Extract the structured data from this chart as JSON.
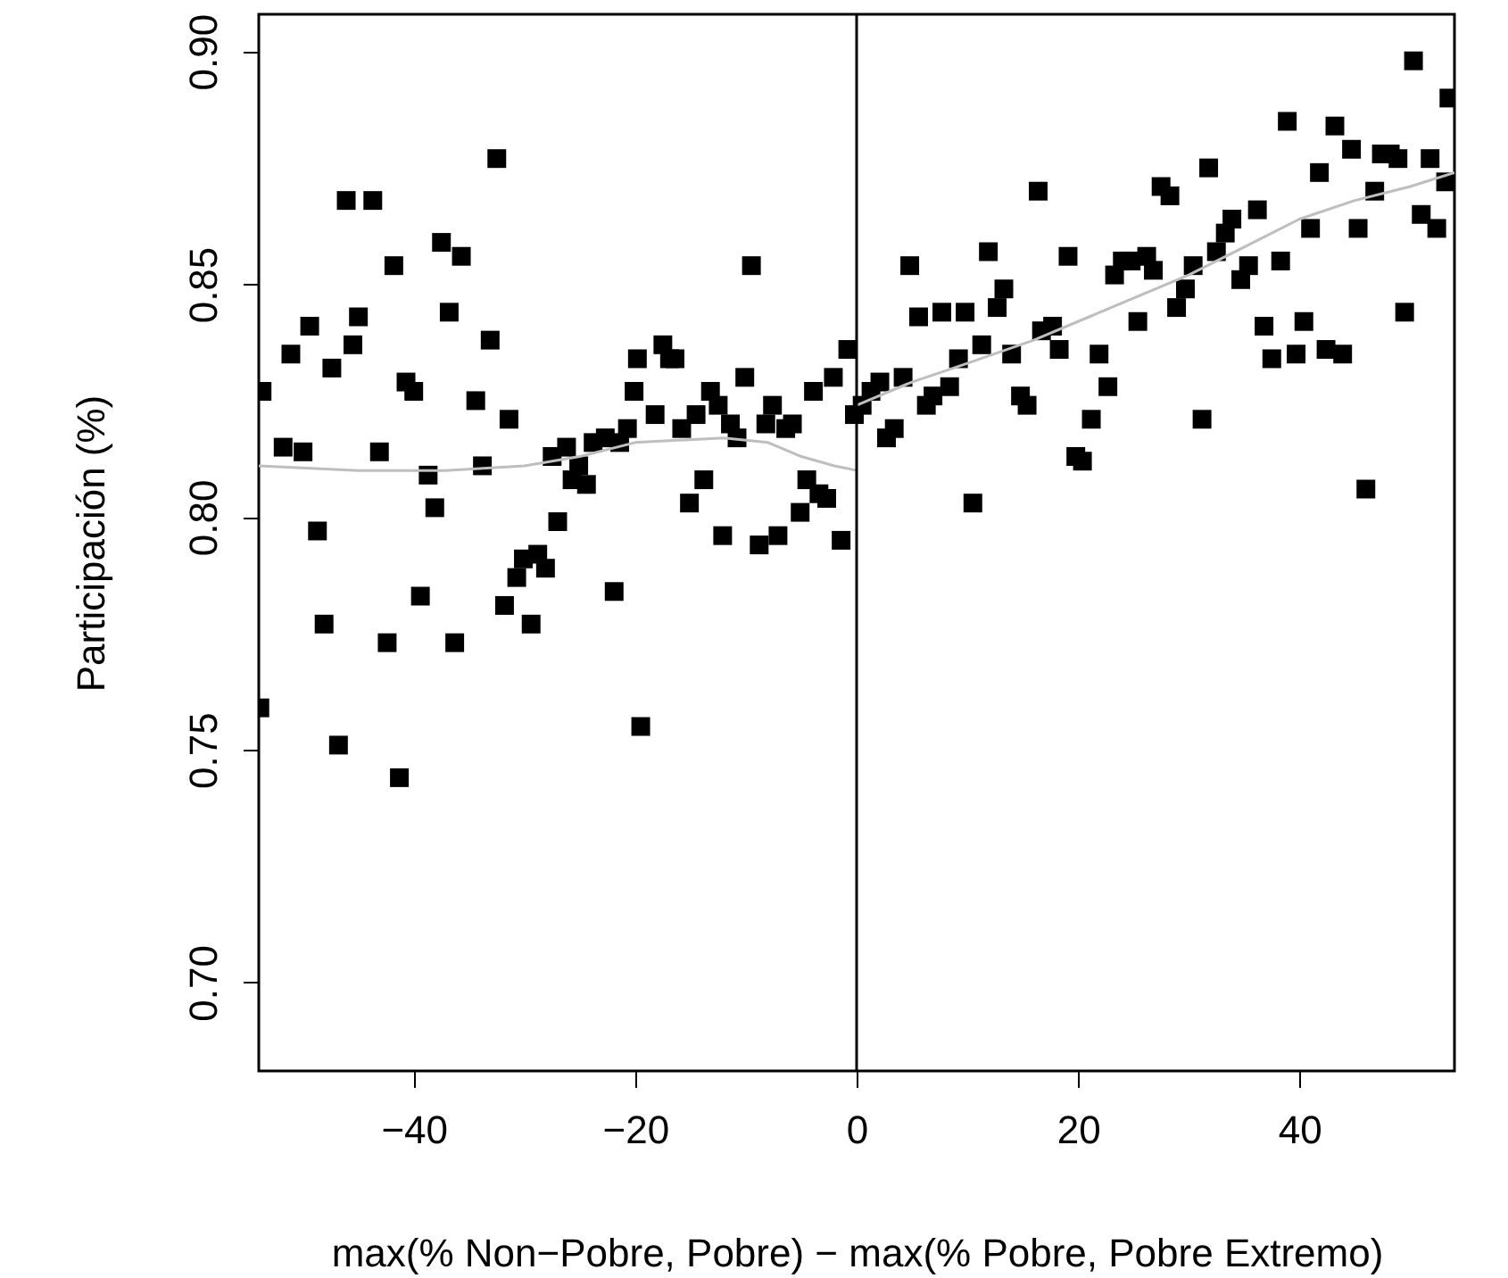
{
  "chart_data": {
    "type": "scatter",
    "xlabel": "max(% Non−Pobre, Pobre) − max(% Pobre, Pobre Extremo)",
    "ylabel": "Participación (%)",
    "xlim": [
      -54,
      54
    ],
    "ylim": [
      0.681,
      0.908
    ],
    "xticks": [
      {
        "value": -40,
        "label": "−40"
      },
      {
        "value": -20,
        "label": "−20"
      },
      0,
      20,
      40
    ],
    "yticks": [
      {
        "value": 0.7,
        "label": "0.70"
      },
      {
        "value": 0.75,
        "label": "0.75"
      },
      {
        "value": 0.8,
        "label": "0.80"
      },
      {
        "value": 0.85,
        "label": "0.85"
      },
      {
        "value": 0.9,
        "label": "0.90"
      }
    ],
    "marker": "square",
    "ref_lines": [
      {
        "axis": "x",
        "value": 0,
        "color": "#000000"
      }
    ],
    "series": [
      {
        "color": "#000000",
        "x": [
          -32.5,
          -46.1,
          -43.7,
          -37.5,
          -35.7,
          -41.8,
          -49.4,
          -45.0,
          -36.8,
          -45.5,
          -33.1,
          -51.1,
          -47.4,
          -53.7,
          -40.7,
          -40.0,
          -34.4,
          -31.4,
          -51.8,
          -50.0,
          -43.1,
          -38.7,
          -33.8,
          -38.1,
          -48.7,
          -27.0,
          -39.4,
          -31.8,
          -48.1,
          -42.4,
          -36.3,
          -29.4,
          -30.7,
          -30.1,
          -28.8,
          -28.1,
          -21.9,
          -53.9,
          -46.8,
          -41.3,
          -19.5,
          -27.5,
          -26.2,
          -25.1,
          -25.7,
          -24.4,
          -23.8,
          -22.7,
          -21.4,
          -20.7,
          -20.1,
          -19.8,
          -9.5,
          -17.5,
          -16.9,
          -16.4,
          -18.2,
          -13.2,
          -12.5,
          -10.1,
          -14.5,
          -15.8,
          -11.4,
          -10.8,
          -7.6,
          -8.2,
          -6.4,
          -5.8,
          -3.9,
          -2.1,
          -0.8,
          -13.8,
          -15.1,
          -4.5,
          -3.4,
          -2.7,
          -5.1,
          -7.1,
          -12.1,
          -8.8,
          -1.4,
          -0.2,
          0.5,
          1.3,
          2.1,
          4.2,
          4.8,
          5.6,
          7.7,
          9.8,
          11.9,
          13.3,
          12.7,
          9.2,
          11.3,
          14.0,
          16.7,
          8.4,
          6.9,
          6.3,
          14.8,
          15.4,
          3.4,
          2.7,
          10.5,
          50.3,
          53.5,
          38.9,
          43.2,
          44.7,
          47.4,
          48.2,
          48.9,
          51.8,
          41.8,
          46.8,
          53.2,
          16.4,
          27.5,
          28.3,
          31.8,
          36.2,
          33.9,
          33.3,
          32.5,
          41.0,
          45.3,
          51.0,
          52.4,
          19.1,
          23.3,
          24.0,
          24.8,
          26.2,
          26.8,
          30.4,
          29.7,
          28.9,
          35.4,
          34.7,
          38.3,
          25.4,
          17.7,
          18.3,
          21.9,
          22.7,
          21.2,
          19.8,
          20.4,
          31.2,
          36.8,
          40.4,
          37.5,
          39.7,
          42.4,
          43.9,
          49.5,
          46.0
        ],
        "values": [
          0.877,
          0.868,
          0.868,
          0.859,
          0.856,
          0.854,
          0.841,
          0.843,
          0.844,
          0.837,
          0.838,
          0.835,
          0.832,
          0.827,
          0.829,
          0.827,
          0.825,
          0.821,
          0.815,
          0.814,
          0.814,
          0.809,
          0.811,
          0.802,
          0.797,
          0.799,
          0.783,
          0.781,
          0.777,
          0.773,
          0.773,
          0.777,
          0.787,
          0.791,
          0.792,
          0.789,
          0.784,
          0.759,
          0.751,
          0.744,
          0.755,
          0.813,
          0.815,
          0.811,
          0.808,
          0.807,
          0.816,
          0.817,
          0.816,
          0.819,
          0.827,
          0.834,
          0.854,
          0.837,
          0.834,
          0.834,
          0.822,
          0.827,
          0.824,
          0.83,
          0.822,
          0.819,
          0.82,
          0.817,
          0.824,
          0.82,
          0.819,
          0.82,
          0.827,
          0.83,
          0.836,
          0.808,
          0.803,
          0.808,
          0.805,
          0.804,
          0.801,
          0.796,
          0.796,
          0.794,
          0.795,
          0.822,
          0.824,
          0.827,
          0.829,
          0.83,
          0.854,
          0.843,
          0.844,
          0.844,
          0.857,
          0.849,
          0.845,
          0.834,
          0.837,
          0.835,
          0.84,
          0.828,
          0.826,
          0.824,
          0.826,
          0.824,
          0.819,
          0.817,
          0.803,
          0.898,
          0.89,
          0.885,
          0.884,
          0.879,
          0.878,
          0.878,
          0.877,
          0.877,
          0.874,
          0.87,
          0.872,
          0.87,
          0.871,
          0.869,
          0.875,
          0.866,
          0.864,
          0.861,
          0.857,
          0.862,
          0.862,
          0.865,
          0.862,
          0.856,
          0.852,
          0.855,
          0.855,
          0.856,
          0.853,
          0.854,
          0.849,
          0.845,
          0.854,
          0.851,
          0.855,
          0.842,
          0.841,
          0.836,
          0.835,
          0.828,
          0.821,
          0.813,
          0.812,
          0.821,
          0.841,
          0.842,
          0.834,
          0.835,
          0.836,
          0.835,
          0.844,
          0.806
        ]
      },
      {
        "type": "line",
        "marker": "none",
        "line_style": "solid",
        "color": "#bebebe",
        "x": [
          -54,
          -45,
          -37,
          -30,
          -25,
          -20,
          -12,
          -8,
          -5,
          -2,
          0
        ],
        "values": [
          0.811,
          0.81,
          0.81,
          0.811,
          0.813,
          0.816,
          0.817,
          0.816,
          0.813,
          0.811,
          0.81
        ]
      },
      {
        "type": "line",
        "marker": "none",
        "line_style": "solid",
        "color": "#bebebe",
        "x": [
          0,
          5,
          10,
          16,
          20,
          25,
          30,
          35,
          40,
          45,
          50,
          54
        ],
        "values": [
          0.824,
          0.829,
          0.833,
          0.838,
          0.842,
          0.847,
          0.852,
          0.858,
          0.864,
          0.868,
          0.871,
          0.874
        ]
      }
    ]
  }
}
